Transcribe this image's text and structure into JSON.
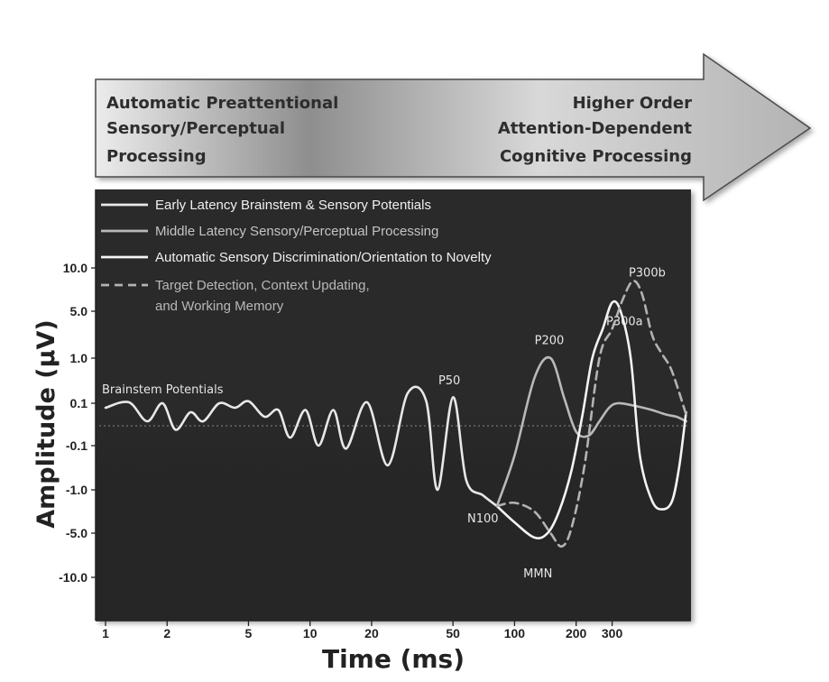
{
  "banner": {
    "left_lines": [
      "Automatic Preattentional",
      "Sensory/Perceptual",
      "Processing"
    ],
    "right_lines": [
      "Higher Order",
      "Attention-Dependent",
      "Cognitive Processing"
    ]
  },
  "chart_data": {
    "type": "line",
    "xlabel": "Time (ms)",
    "ylabel": "Amplitude (µV)",
    "x_scale": "log",
    "y_scale": "symmetric-log",
    "xticks": [
      1,
      2,
      5,
      10,
      20,
      50,
      100,
      200,
      300
    ],
    "xtick_labels": [
      "1",
      "2",
      "5",
      "10",
      "20",
      "50",
      "100",
      "200",
      "300"
    ],
    "yticks": [
      10.0,
      5.0,
      1.0,
      0.1,
      -0.1,
      -1.0,
      -5.0,
      -10.0
    ],
    "ytick_labels": [
      "10.0",
      "5.0",
      "1.0",
      "0.1",
      "-0.1",
      "-1.0",
      "-5.0",
      "-10.0"
    ],
    "grid": false,
    "legend_position": "top-left",
    "series": [
      {
        "name": "Early Latency Brainstem & Sensory Potentials",
        "color": "#e8e8e8",
        "dash": "solid",
        "points": [
          [
            1,
            0.08
          ],
          [
            1.3,
            0.12
          ],
          [
            1.6,
            0.02
          ],
          [
            1.9,
            0.1
          ],
          [
            2.2,
            -0.02
          ],
          [
            2.6,
            0.06
          ],
          [
            3.0,
            0.02
          ],
          [
            3.6,
            0.1
          ],
          [
            4.3,
            0.08
          ],
          [
            5,
            0.14
          ],
          [
            6,
            0.04
          ],
          [
            7,
            0.07
          ],
          [
            8,
            -0.06
          ],
          [
            9.5,
            0.07
          ],
          [
            11,
            -0.1
          ],
          [
            13,
            0.07
          ],
          [
            15,
            -0.16
          ],
          [
            19,
            0.12
          ],
          [
            24,
            -0.5
          ],
          [
            30,
            0.3
          ],
          [
            37,
            0.14
          ],
          [
            42,
            -1.0
          ],
          [
            50,
            0.22
          ],
          [
            58,
            -0.8
          ],
          [
            70,
            -1.5
          ],
          [
            82,
            -2.5
          ]
        ]
      },
      {
        "name": "Middle Latency Sensory/Perceptual Processing",
        "color": "#b9b9b9",
        "dash": "solid",
        "points": [
          [
            82,
            -2.5
          ],
          [
            100,
            -0.3
          ],
          [
            125,
            0.6
          ],
          [
            150,
            1.0
          ],
          [
            175,
            0.2
          ],
          [
            200,
            -0.03
          ],
          [
            230,
            -0.05
          ],
          [
            260,
            0.02
          ],
          [
            290,
            0.08
          ],
          [
            320,
            0.1
          ],
          [
            380,
            0.09
          ],
          [
            470,
            0.07
          ],
          [
            550,
            0.05
          ],
          [
            620,
            0.04
          ],
          [
            690,
            0.02
          ]
        ]
      },
      {
        "name": "Automatic Sensory Discrimination/Orientation to Novelty",
        "color": "#f4f4f4",
        "dash": "solid",
        "points": [
          [
            82,
            -2.5
          ],
          [
            100,
            -4.0
          ],
          [
            125,
            -5.5
          ],
          [
            145,
            -5.0
          ],
          [
            165,
            -3.0
          ],
          [
            190,
            -0.6
          ],
          [
            215,
            0.05
          ],
          [
            240,
            1.0
          ],
          [
            270,
            3.5
          ],
          [
            300,
            6.0
          ],
          [
            330,
            5.0
          ],
          [
            370,
            1.0
          ],
          [
            410,
            -0.3
          ],
          [
            470,
            -2.0
          ],
          [
            530,
            -2.8
          ],
          [
            590,
            -2.0
          ],
          [
            640,
            -0.5
          ],
          [
            690,
            0.06
          ]
        ]
      },
      {
        "name": "Target Detection, Context Updating, and Working Memory",
        "color": "#b3b3b3",
        "dash": "dashed",
        "points": [
          [
            82,
            -2.5
          ],
          [
            100,
            -2.2
          ],
          [
            125,
            -3.0
          ],
          [
            150,
            -5.0
          ],
          [
            170,
            -6.5
          ],
          [
            190,
            -4.5
          ],
          [
            220,
            -0.5
          ],
          [
            260,
            1.0
          ],
          [
            300,
            3.5
          ],
          [
            340,
            6.5
          ],
          [
            380,
            8.5
          ],
          [
            420,
            7.0
          ],
          [
            470,
            3.0
          ],
          [
            520,
            1.5
          ],
          [
            580,
            0.8
          ],
          [
            640,
            0.3
          ],
          [
            690,
            0.05
          ]
        ]
      }
    ],
    "annotations": [
      {
        "text": "Brainstem  Potentials",
        "x": 1.5,
        "y": 0.3
      },
      {
        "text": "P50",
        "x": 48,
        "y": 0.48
      },
      {
        "text": "P200",
        "x": 148,
        "y": 2.2
      },
      {
        "text": "N100",
        "x": 70,
        "y": -4.0
      },
      {
        "text": "MMN",
        "x": 130,
        "y": -10.0
      },
      {
        "text": "P300a",
        "x": 345,
        "y": 3.8
      },
      {
        "text": "P300b",
        "x": 445,
        "y": 9.0
      }
    ]
  }
}
